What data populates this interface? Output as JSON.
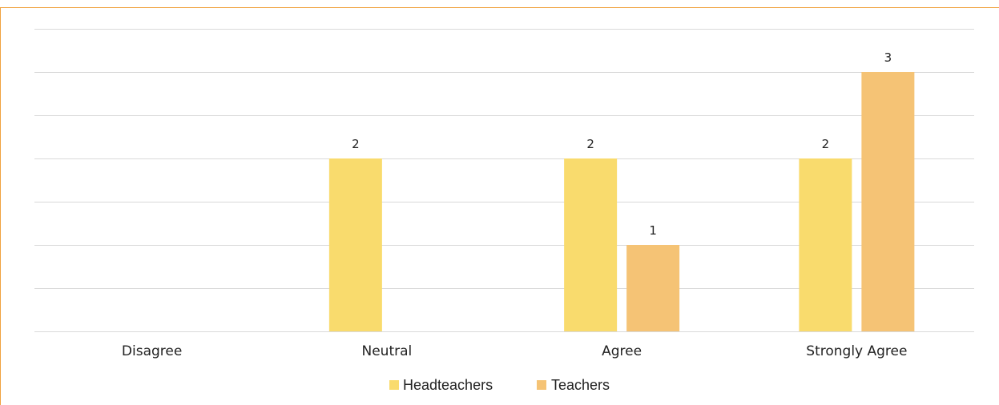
{
  "chart_data": {
    "type": "bar",
    "title": "",
    "xlabel": "",
    "ylabel": "",
    "ylim": [
      0,
      3.5
    ],
    "grid": true,
    "legend_position": "bottom",
    "categories": [
      "Disagree",
      "Neutral",
      "Agree",
      "Strongly Agree"
    ],
    "series": [
      {
        "name": "Headteachers",
        "color": "#f9db6d",
        "values": [
          0,
          2,
          2,
          2
        ],
        "labels": [
          "",
          "2",
          "2",
          "2"
        ]
      },
      {
        "name": "Teachers",
        "color": "#f5c375",
        "values": [
          0,
          0,
          1,
          3
        ],
        "labels": [
          "",
          "",
          "1",
          "3"
        ]
      }
    ]
  },
  "colors": {
    "frame_border": "#f0a340",
    "gridline": "#d9d9d9"
  }
}
